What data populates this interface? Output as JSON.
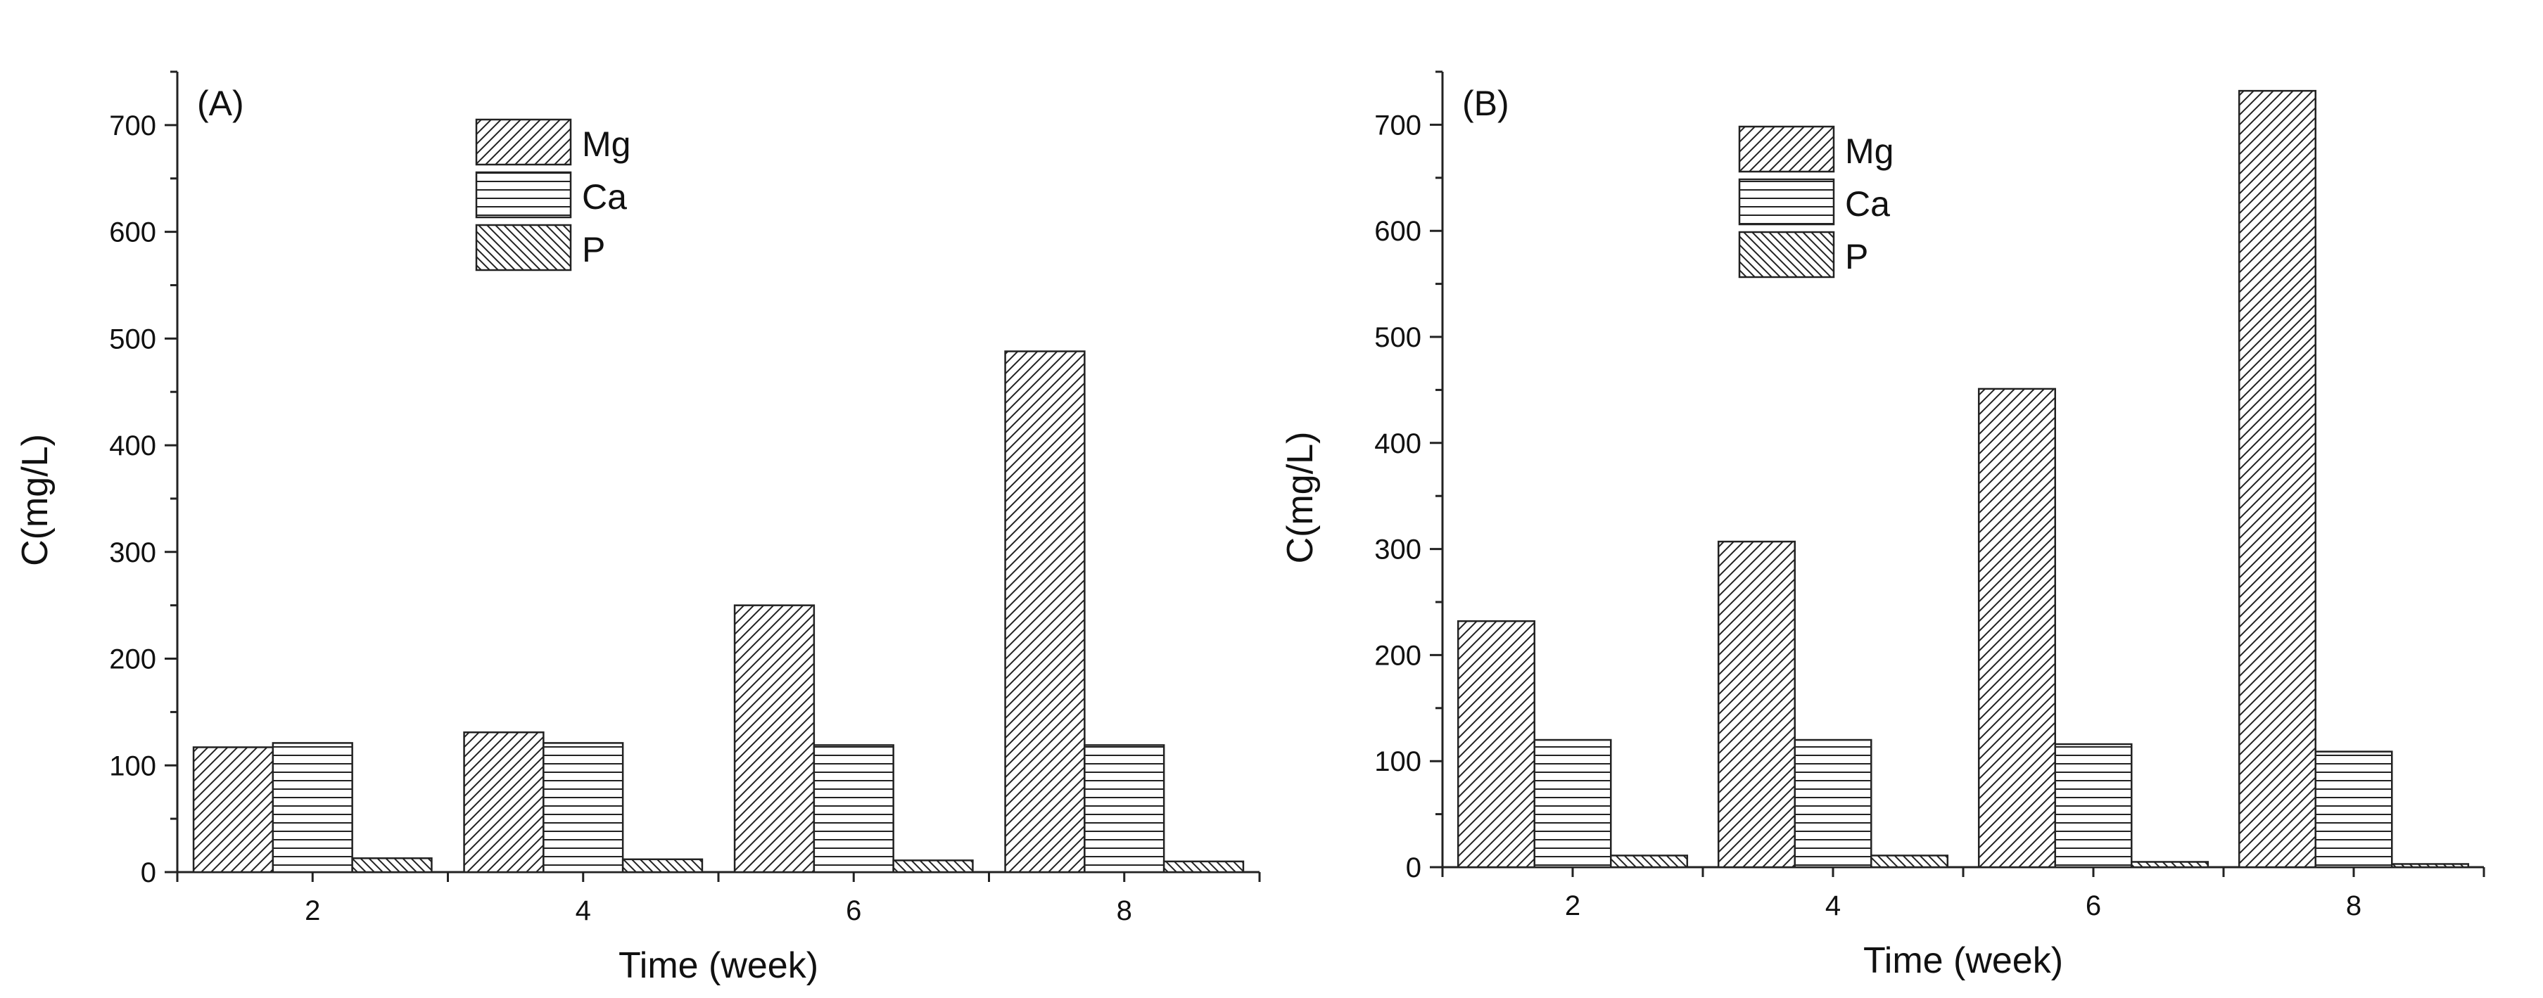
{
  "chart_data": [
    {
      "type": "bar",
      "panel_label": "(A)",
      "categories": [
        "2",
        "4",
        "6",
        "8"
      ],
      "series": [
        {
          "name": "Mg",
          "values": [
            117,
            131,
            250,
            488
          ],
          "pattern": "diag-fwd"
        },
        {
          "name": "Ca",
          "values": [
            121,
            121,
            119,
            119
          ],
          "pattern": "horiz"
        },
        {
          "name": "P",
          "values": [
            13,
            12,
            11,
            10
          ],
          "pattern": "diag-back"
        }
      ],
      "xlabel": "Time (week)",
      "ylabel": "C(mg/L)",
      "ylim": [
        0,
        750
      ],
      "yticks": [
        0,
        100,
        200,
        300,
        400,
        500,
        600,
        700
      ],
      "grid": false,
      "legend_position": "top-center"
    },
    {
      "type": "bar",
      "panel_label": "(B)",
      "categories": [
        "2",
        "4",
        "6",
        "8"
      ],
      "series": [
        {
          "name": "Mg",
          "values": [
            232,
            307,
            451,
            732
          ],
          "pattern": "diag-fwd"
        },
        {
          "name": "Ca",
          "values": [
            120,
            120,
            116,
            109
          ],
          "pattern": "horiz"
        },
        {
          "name": "P",
          "values": [
            11,
            11,
            5,
            3
          ],
          "pattern": "diag-back"
        }
      ],
      "xlabel": "Time (week)",
      "ylabel": "C(mg/L)",
      "ylim": [
        0,
        750
      ],
      "yticks": [
        0,
        100,
        200,
        300,
        400,
        500,
        600,
        700
      ],
      "grid": false,
      "legend_position": "top-center"
    }
  ]
}
